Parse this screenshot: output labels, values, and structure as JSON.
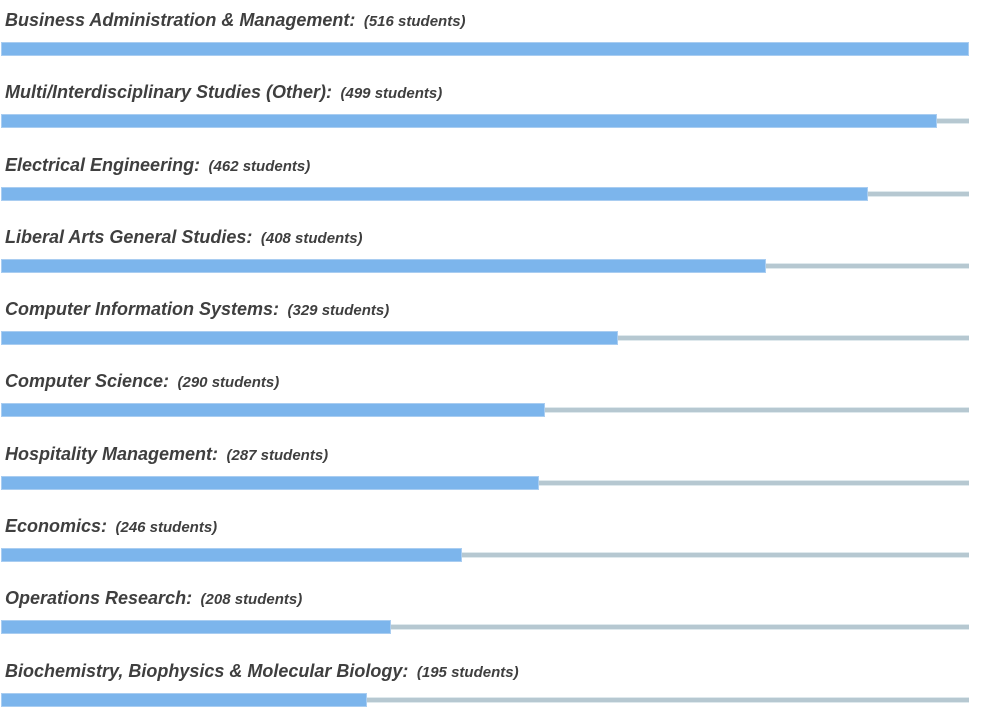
{
  "chart_data": {
    "type": "bar",
    "orientation": "horizontal",
    "title": "",
    "xlabel": "",
    "ylabel": "",
    "xlim": [
      0,
      516
    ],
    "grid": false,
    "legend": false,
    "categories": [
      "Business Administration & Management:",
      "Multi/Interdisciplinary Studies (Other):",
      "Electrical Engineering:",
      "Liberal Arts General Studies:",
      "Computer Information Systems:",
      "Computer Science:",
      "Hospitality Management:",
      "Economics:",
      "Operations Research:",
      "Biochemistry, Biophysics & Molecular Biology:"
    ],
    "values": [
      516,
      499,
      462,
      408,
      329,
      290,
      287,
      246,
      208,
      195
    ],
    "value_labels": [
      "(516 students)",
      "(499 students)",
      "(462 students)",
      "(408 students)",
      "(329 students)",
      "(290 students)",
      "(287 students)",
      "(246 students)",
      "(208 students)",
      "(195 students)"
    ]
  },
  "colors": {
    "bar_fill": "#7cb5ec",
    "bar_border": "#a9cdf1",
    "track": "#b6c8d1",
    "track_edge": "#dfe9ed",
    "label_text": "#3f3f3f"
  }
}
